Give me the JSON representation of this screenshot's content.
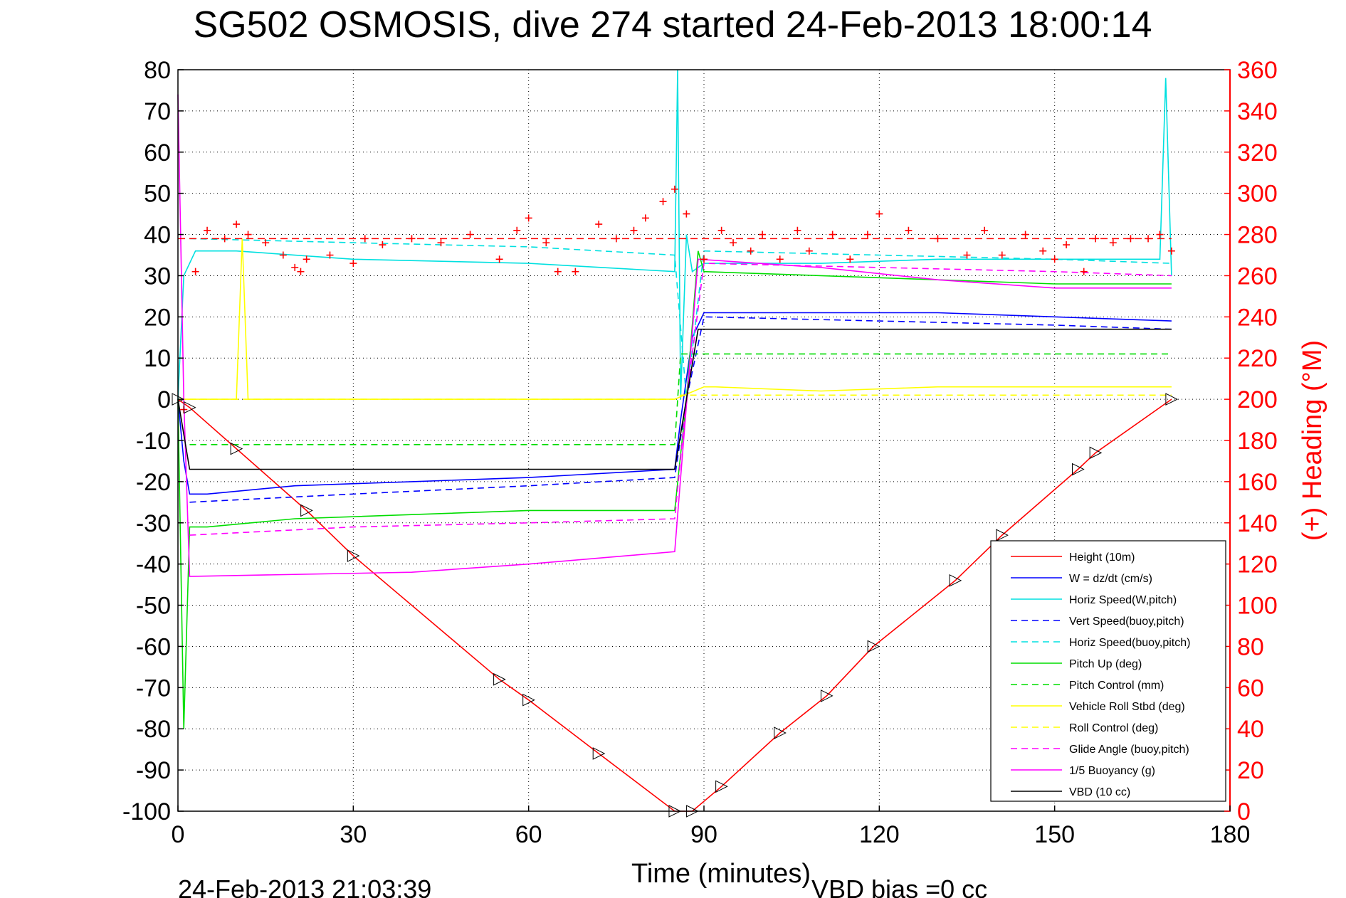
{
  "chart_data": {
    "type": "line",
    "title": "SG502 OSMOSIS, dive 274 started 24-Feb-2013 18:00:14",
    "xlabel": "Time (minutes)",
    "ylabel_right": "(+) Heading (°M)",
    "footer_left": "24-Feb-2013 21:03:39",
    "footer_right": "VBD bias =0 cc",
    "xlim": [
      0,
      180
    ],
    "ylim": [
      -100,
      80
    ],
    "ylim_right": [
      0,
      360
    ],
    "xticks": [
      "0",
      "30",
      "60",
      "90",
      "120",
      "150",
      "180"
    ],
    "yticks_left": [
      "80",
      "70",
      "60",
      "50",
      "40",
      "30",
      "20",
      "10",
      "0",
      "-10",
      "-20",
      "-30",
      "-40",
      "-50",
      "-60",
      "-70",
      "-80",
      "-90",
      "-100"
    ],
    "yticks_right": [
      "360",
      "340",
      "320",
      "300",
      "280",
      "260",
      "240",
      "220",
      "200",
      "180",
      "160",
      "140",
      "120",
      "100",
      "80",
      "60",
      "40",
      "20",
      "0"
    ],
    "grid": true,
    "legend_position": "bottom-right",
    "colors": {
      "heading": "#ff0000",
      "right_axis": "#ff0000"
    },
    "series": [
      {
        "name": "Height (10m)",
        "color": "#ff0000",
        "dash": "solid",
        "x": [
          0,
          2,
          10,
          22,
          30,
          55,
          60,
          72,
          85,
          88,
          93,
          103,
          111,
          119,
          133,
          141,
          154,
          157,
          170
        ],
        "y": [
          0,
          -2,
          -12,
          -27,
          -38,
          -68,
          -73,
          -86,
          -100,
          -100,
          -94,
          -81,
          -72,
          -60,
          -44,
          -33,
          -17,
          -13,
          0
        ]
      },
      {
        "name": "W = dz/dt (cm/s)",
        "color": "#0000ff",
        "dash": "solid",
        "x": [
          0,
          1,
          2,
          5,
          20,
          40,
          60,
          85,
          86,
          88,
          90,
          110,
          130,
          150,
          170
        ],
        "y": [
          0,
          -15,
          -23,
          -23,
          -21,
          -20,
          -19,
          -17,
          -5,
          15,
          21,
          21,
          21,
          20,
          19
        ]
      },
      {
        "name": "Horiz Speed(W,pitch)",
        "color": "#00e0e0",
        "dash": "solid",
        "x": [
          0,
          1,
          3,
          10,
          30,
          60,
          85,
          85.5,
          86,
          87,
          88,
          90,
          110,
          130,
          150,
          168,
          169,
          170
        ],
        "y": [
          0,
          30,
          36,
          36,
          34,
          33,
          31,
          80,
          0,
          40,
          31,
          33,
          33,
          34,
          34,
          34,
          78,
          30
        ]
      },
      {
        "name": "Vert Speed(buoy,pitch)",
        "color": "#0000ff",
        "dash": "dashed",
        "x": [
          2,
          30,
          60,
          85,
          87,
          90,
          120,
          150,
          170
        ],
        "y": [
          -25,
          -23,
          -21,
          -19,
          0,
          20,
          19,
          18,
          17
        ]
      },
      {
        "name": "Horiz Speed(buoy,pitch)",
        "color": "#00e0e0",
        "dash": "dashed",
        "x": [
          2,
          30,
          60,
          85,
          87,
          90,
          120,
          150,
          170
        ],
        "y": [
          39,
          38,
          37,
          35,
          0,
          36,
          35,
          34,
          33
        ]
      },
      {
        "name": "Pitch Up (deg)",
        "color": "#00dd00",
        "dash": "solid",
        "x": [
          0,
          1,
          2,
          5,
          20,
          40,
          60,
          85,
          87,
          89,
          90,
          110,
          130,
          150,
          170
        ],
        "y": [
          0,
          -80,
          -31,
          -31,
          -29,
          -28,
          -27,
          -27,
          0,
          36,
          31,
          30,
          29,
          28,
          28
        ]
      },
      {
        "name": "Pitch Control (mm)",
        "color": "#00dd00",
        "dash": "dashed",
        "x": [
          2,
          85,
          86,
          170
        ],
        "y": [
          -11,
          -11,
          11,
          11
        ]
      },
      {
        "name": "Vehicle Roll Stbd (deg)",
        "color": "#ffff00",
        "dash": "solid",
        "x": [
          0,
          3,
          10,
          11,
          12,
          30,
          60,
          85,
          90,
          92,
          110,
          130,
          150,
          170
        ],
        "y": [
          0,
          0,
          0,
          39,
          0,
          0,
          0,
          0,
          3,
          3,
          2,
          3,
          3,
          3
        ]
      },
      {
        "name": "Roll Control (deg)",
        "color": "#ffff00",
        "dash": "dashed",
        "x": [
          2,
          85,
          86,
          170
        ],
        "y": [
          0,
          0,
          1,
          1
        ]
      },
      {
        "name": "Glide Angle (buoy,pitch)",
        "color": "#ff00ff",
        "dash": "dashed",
        "x": [
          2,
          30,
          60,
          85,
          87,
          90,
          120,
          150,
          170
        ],
        "y": [
          -33,
          -31,
          -30,
          -29,
          0,
          33,
          32,
          31,
          30
        ]
      },
      {
        "name": "1/5 Buoyancy (g)",
        "color": "#ff00ff",
        "dash": "solid",
        "x": [
          0,
          1,
          2,
          40,
          60,
          85,
          89,
          110,
          130,
          150,
          170
        ],
        "y": [
          74,
          0,
          -43,
          -42,
          -40,
          -37,
          34,
          32,
          29,
          27,
          27
        ]
      },
      {
        "name": "VBD (10 cc)",
        "color": "#000000",
        "dash": "solid",
        "x": [
          0,
          2,
          85,
          89,
          170
        ],
        "y": [
          0,
          -17,
          -17,
          17,
          17
        ]
      }
    ],
    "heading_series": {
      "marker": "+",
      "color": "#ff0000",
      "axis": "right",
      "target_line": {
        "y": 278,
        "color": "#ff0000",
        "dash": "dashed"
      },
      "x": [
        1,
        3,
        5,
        8,
        10,
        12,
        15,
        18,
        20,
        21,
        22,
        26,
        30,
        32,
        35,
        40,
        45,
        50,
        55,
        58,
        60,
        63,
        65,
        68,
        72,
        75,
        78,
        80,
        83,
        85,
        87,
        90,
        93,
        95,
        98,
        100,
        103,
        106,
        108,
        112,
        115,
        118,
        120,
        125,
        130,
        135,
        138,
        141,
        145,
        148,
        150,
        152,
        155,
        157,
        160,
        163,
        166,
        168,
        170
      ],
      "y": [
        195,
        262,
        282,
        278,
        285,
        280,
        276,
        270,
        264,
        262,
        268,
        270,
        266,
        278,
        275,
        278,
        276,
        280,
        268,
        282,
        288,
        276,
        262,
        262,
        285,
        278,
        282,
        288,
        296,
        302,
        290,
        268,
        282,
        276,
        272,
        280,
        268,
        282,
        272,
        280,
        268,
        280,
        290,
        282,
        278,
        270,
        282,
        270,
        280,
        272,
        268,
        275,
        262,
        278,
        276,
        278,
        278,
        280,
        272
      ]
    }
  }
}
